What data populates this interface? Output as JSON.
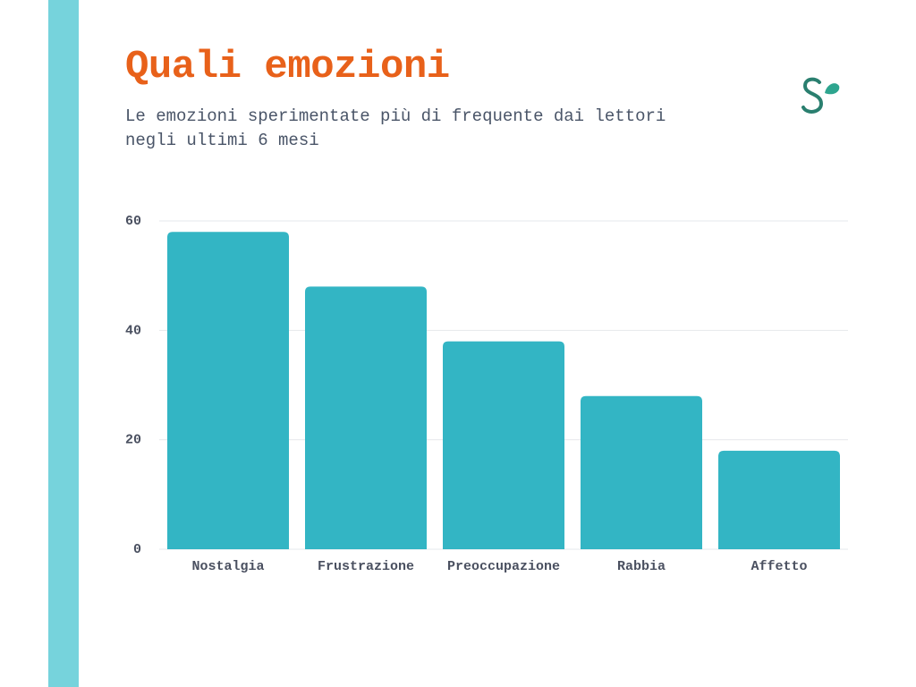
{
  "chart_data": {
    "type": "bar",
    "title": "Quali emozioni",
    "subtitle": "Le emozioni sperimentate più di frequente dai lettori negli ultimi 6 mesi",
    "categories": [
      "Nostalgia",
      "Frustrazione",
      "Preoccupazione",
      "Rabbia",
      "Affetto"
    ],
    "values": [
      58,
      48,
      38,
      28,
      18
    ],
    "color": "#33b5c4",
    "ylim": [
      0,
      60
    ],
    "yticks": [
      0,
      20,
      40,
      60
    ],
    "grid": true
  }
}
